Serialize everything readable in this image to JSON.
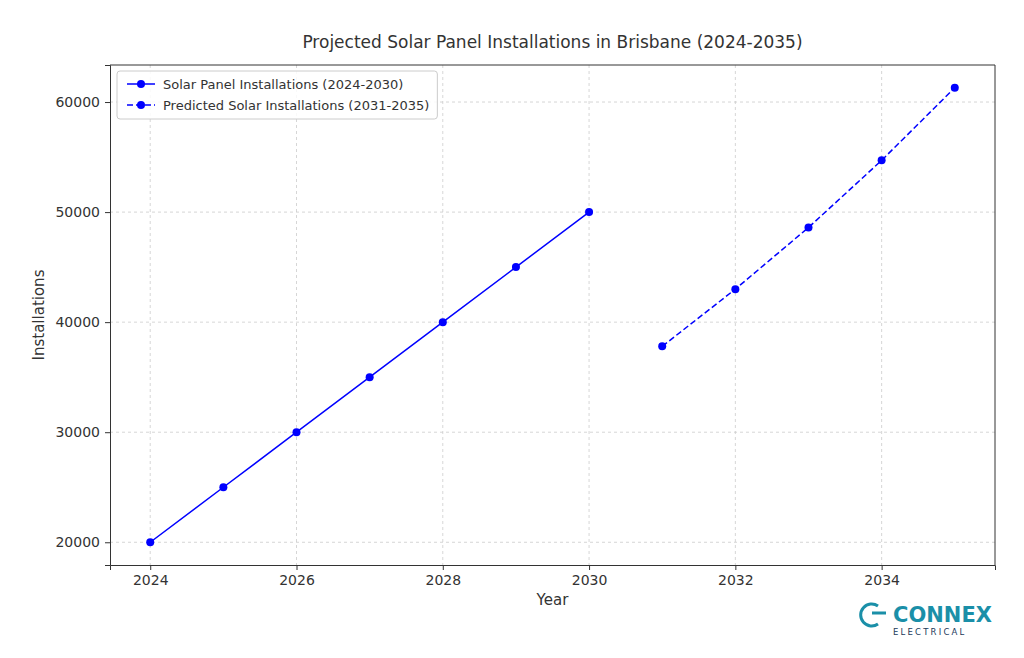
{
  "chart_data": {
    "type": "line",
    "title": "Projected Solar Panel Installations in Brisbane (2024-2035)",
    "x_label": "Year",
    "y_label": "Installations",
    "series": [
      {
        "name": "Solar Panel Installations (2024-2030)",
        "color": "#0000ff",
        "line_style": "solid",
        "marker": "circle",
        "x": [
          2024,
          2025,
          2026,
          2027,
          2028,
          2029,
          2030
        ],
        "values": [
          20000,
          25000,
          30000,
          35000,
          40000,
          45000,
          50000
        ]
      },
      {
        "name": "Predicted Solar Installations (2031-2035)",
        "color": "#0000ff",
        "line_style": "dashed",
        "marker": "circle",
        "x": [
          2031,
          2032,
          2033,
          2034,
          2035
        ],
        "values": [
          37800,
          43000,
          48600,
          54700,
          61300
        ]
      }
    ],
    "xlim": [
      2023.45,
      2035.55
    ],
    "xticks": [
      2024,
      2026,
      2028,
      2030,
      2032,
      2034
    ],
    "ylim": [
      17935,
      63365
    ],
    "yticks": [
      20000,
      30000,
      40000,
      50000,
      60000
    ],
    "grid": true,
    "legend": "upper left",
    "annotations": [
      "CONNEX",
      "ELECTRICAL"
    ]
  }
}
